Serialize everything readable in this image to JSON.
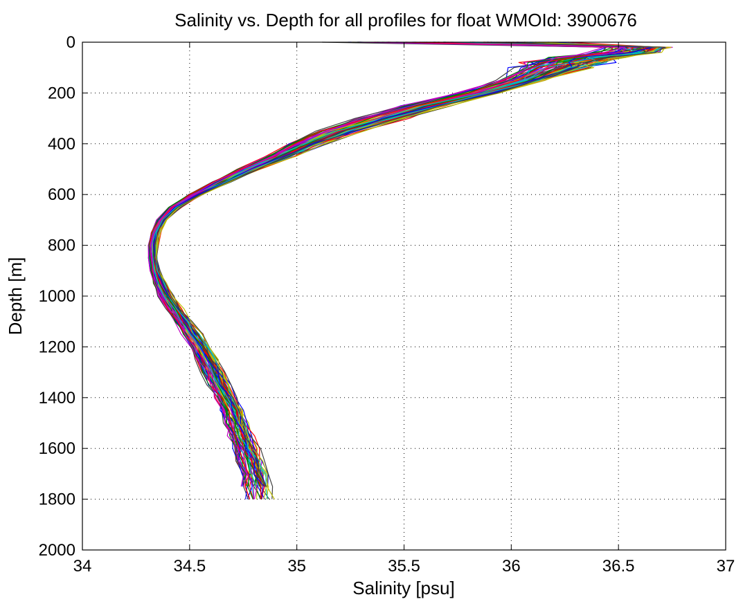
{
  "chart_data": {
    "type": "line",
    "title": "Salinity vs. Depth for all profiles for float WMOId: 3900676",
    "xlabel": "Salinity [psu]",
    "ylabel": "Depth [m]",
    "xlim": [
      34,
      37
    ],
    "ylim": [
      0,
      2000
    ],
    "y_reversed": true,
    "grid": true,
    "xticks": [
      34,
      34.5,
      35,
      35.5,
      36,
      36.5,
      37
    ],
    "xtick_labels": [
      "34",
      "34.5",
      "35",
      "35.5",
      "36",
      "36.5",
      "37"
    ],
    "yticks": [
      0,
      200,
      400,
      600,
      800,
      1000,
      1200,
      1400,
      1600,
      1800,
      2000
    ],
    "ytick_labels": [
      "0",
      "200",
      "400",
      "600",
      "800",
      "1000",
      "1200",
      "1400",
      "1600",
      "1800",
      "2000"
    ],
    "colors": [
      "#0000ff",
      "#008000",
      "#ff0000",
      "#00bfbf",
      "#bf00bf",
      "#bfbf00",
      "#404040"
    ],
    "profile_count": 70,
    "representative_profile": {
      "depth": [
        0,
        20,
        40,
        60,
        80,
        100,
        150,
        200,
        250,
        300,
        350,
        400,
        450,
        500,
        550,
        600,
        650,
        700,
        750,
        800,
        850,
        900,
        950,
        1000,
        1050,
        1100,
        1150,
        1200,
        1250,
        1300,
        1350,
        1400,
        1450,
        1500,
        1550,
        1600,
        1650,
        1700,
        1750,
        1800
      ],
      "salinity": [
        35.7,
        36.6,
        36.55,
        36.35,
        36.25,
        36.2,
        36.05,
        35.85,
        35.6,
        35.4,
        35.2,
        35.05,
        34.92,
        34.78,
        34.65,
        34.53,
        34.43,
        34.37,
        34.34,
        34.33,
        34.33,
        34.34,
        34.36,
        34.39,
        34.43,
        34.47,
        34.51,
        34.55,
        34.58,
        34.61,
        34.64,
        34.67,
        34.7,
        34.72,
        34.74,
        34.76,
        34.78,
        34.8,
        34.81,
        34.82
      ]
    },
    "spread": {
      "depth": [
        0,
        20,
        40,
        60,
        80,
        100,
        150,
        200,
        250,
        300,
        350,
        400,
        450,
        500,
        550,
        600,
        650,
        700,
        750,
        800,
        850,
        900,
        950,
        1000,
        1050,
        1100,
        1150,
        1200,
        1250,
        1300,
        1350,
        1400,
        1450,
        1500,
        1550,
        1600,
        1650,
        1700,
        1750,
        1800
      ],
      "salinity_delta": [
        0.9,
        0.25,
        0.25,
        0.3,
        0.3,
        0.3,
        0.2,
        0.2,
        0.2,
        0.2,
        0.18,
        0.15,
        0.12,
        0.1,
        0.08,
        0.06,
        0.05,
        0.04,
        0.04,
        0.04,
        0.04,
        0.04,
        0.05,
        0.06,
        0.07,
        0.07,
        0.08,
        0.08,
        0.09,
        0.09,
        0.09,
        0.09,
        0.1,
        0.1,
        0.1,
        0.11,
        0.11,
        0.11,
        0.12,
        0.12
      ]
    }
  }
}
